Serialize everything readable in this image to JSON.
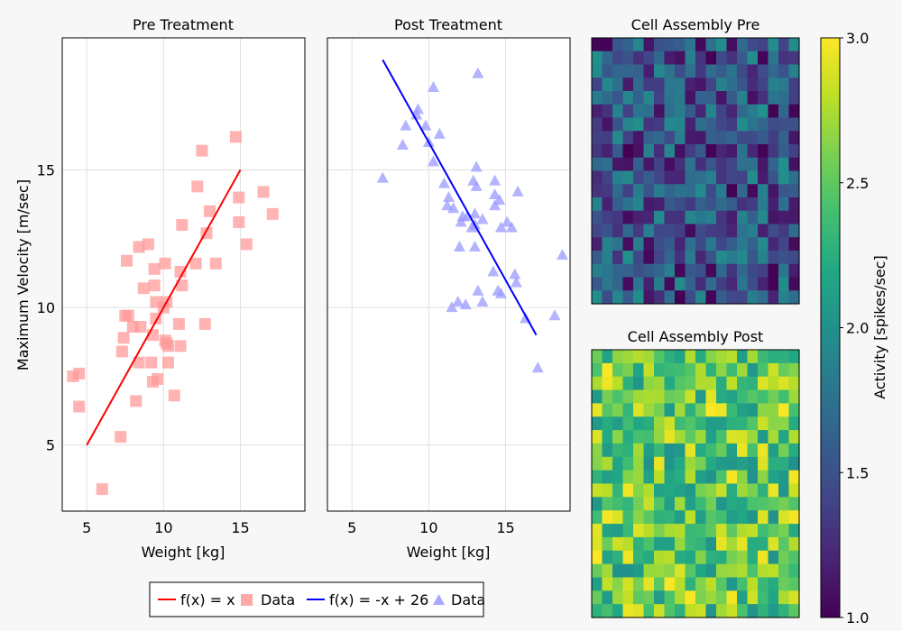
{
  "chart_data": [
    {
      "type": "scatter",
      "title": "Pre Treatment",
      "xlabel": "Weight [kg]",
      "ylabel": "Maximum Velocity [m/sec]",
      "xlim": [
        3.4,
        19.2
      ],
      "ylim": [
        2.6,
        19.8
      ],
      "xticks": [
        5,
        10,
        15
      ],
      "yticks": [
        5,
        10,
        15
      ],
      "grid": true,
      "series": [
        {
          "name": "f(x) = x",
          "kind": "line",
          "color": "#ff0000",
          "points": [
            [
              5,
              5
            ],
            [
              15,
              15
            ]
          ]
        },
        {
          "name": "Data",
          "kind": "scatter",
          "marker": "square",
          "color": "#ff9999",
          "points": [
            [
              4.1,
              7.5
            ],
            [
              4.5,
              7.6
            ],
            [
              4.5,
              6.4
            ],
            [
              6.0,
              3.4
            ],
            [
              7.2,
              5.3
            ],
            [
              7.3,
              8.4
            ],
            [
              7.4,
              8.9
            ],
            [
              7.5,
              9.7
            ],
            [
              7.6,
              11.7
            ],
            [
              7.7,
              9.7
            ],
            [
              8.0,
              9.3
            ],
            [
              8.2,
              6.6
            ],
            [
              8.4,
              12.2
            ],
            [
              8.4,
              8.0
            ],
            [
              8.5,
              9.3
            ],
            [
              8.7,
              10.7
            ],
            [
              9.0,
              12.3
            ],
            [
              9.2,
              8.0
            ],
            [
              9.3,
              7.3
            ],
            [
              9.3,
              9.0
            ],
            [
              9.4,
              11.4
            ],
            [
              9.4,
              10.8
            ],
            [
              9.5,
              9.6
            ],
            [
              9.5,
              10.2
            ],
            [
              9.6,
              7.4
            ],
            [
              10.0,
              10.0
            ],
            [
              10.1,
              8.8
            ],
            [
              10.1,
              11.6
            ],
            [
              10.2,
              8.7
            ],
            [
              10.2,
              10.2
            ],
            [
              10.3,
              8.0
            ],
            [
              10.3,
              8.6
            ],
            [
              10.7,
              6.8
            ],
            [
              11.0,
              9.4
            ],
            [
              11.1,
              8.6
            ],
            [
              11.1,
              11.3
            ],
            [
              11.2,
              13.0
            ],
            [
              11.2,
              10.8
            ],
            [
              12.1,
              11.6
            ],
            [
              12.2,
              14.4
            ],
            [
              12.5,
              15.7
            ],
            [
              12.7,
              9.4
            ],
            [
              12.8,
              12.7
            ],
            [
              13.0,
              13.5
            ],
            [
              13.4,
              11.6
            ],
            [
              14.7,
              16.2
            ],
            [
              14.9,
              13.1
            ],
            [
              14.9,
              14.0
            ],
            [
              15.4,
              12.3
            ],
            [
              16.5,
              14.2
            ],
            [
              17.1,
              13.4
            ]
          ]
        }
      ]
    },
    {
      "type": "scatter",
      "title": "Post Treatment",
      "xlabel": "Weight [kg]",
      "ylabel": "",
      "xlim": [
        3.4,
        19.2
      ],
      "ylim": [
        2.6,
        19.8
      ],
      "xticks": [
        5,
        10,
        15
      ],
      "grid": true,
      "series": [
        {
          "name": "f(x) = -x + 26",
          "kind": "line",
          "color": "#0000ff",
          "points": [
            [
              7,
              19
            ],
            [
              17,
              9
            ]
          ]
        },
        {
          "name": "Data",
          "kind": "scatter",
          "marker": "triangle",
          "color": "#9999ff",
          "points": [
            [
              7.0,
              14.7
            ],
            [
              8.3,
              15.9
            ],
            [
              8.5,
              16.6
            ],
            [
              9.2,
              17.0
            ],
            [
              9.3,
              17.2
            ],
            [
              9.8,
              16.6
            ],
            [
              10.0,
              16.0
            ],
            [
              10.3,
              18.0
            ],
            [
              10.3,
              15.3
            ],
            [
              10.7,
              16.3
            ],
            [
              11.0,
              14.5
            ],
            [
              11.2,
              13.7
            ],
            [
              11.3,
              14.0
            ],
            [
              11.5,
              10.0
            ],
            [
              11.6,
              13.6
            ],
            [
              11.9,
              10.2
            ],
            [
              12.0,
              12.2
            ],
            [
              12.1,
              13.1
            ],
            [
              12.2,
              13.3
            ],
            [
              12.4,
              10.1
            ],
            [
              12.5,
              13.3
            ],
            [
              12.8,
              12.9
            ],
            [
              12.9,
              14.6
            ],
            [
              13.0,
              13.4
            ],
            [
              13.0,
              12.2
            ],
            [
              13.0,
              13.0
            ],
            [
              13.1,
              15.1
            ],
            [
              13.1,
              14.4
            ],
            [
              13.2,
              18.5
            ],
            [
              13.2,
              10.6
            ],
            [
              13.5,
              10.2
            ],
            [
              13.5,
              13.2
            ],
            [
              14.2,
              11.3
            ],
            [
              14.3,
              14.6
            ],
            [
              14.3,
              13.7
            ],
            [
              14.3,
              14.1
            ],
            [
              14.5,
              10.6
            ],
            [
              14.6,
              13.9
            ],
            [
              14.7,
              10.5
            ],
            [
              14.7,
              12.9
            ],
            [
              15.1,
              13.1
            ],
            [
              15.4,
              12.9
            ],
            [
              15.6,
              11.2
            ],
            [
              15.7,
              10.9
            ],
            [
              15.8,
              14.2
            ],
            [
              16.3,
              9.6
            ],
            [
              17.1,
              7.8
            ],
            [
              18.2,
              9.7
            ],
            [
              18.7,
              11.9
            ]
          ]
        }
      ]
    },
    {
      "type": "heatmap",
      "title": "Cell Assembly Pre",
      "color_range": [
        1.0,
        3.0
      ],
      "grid_size": [
        20,
        20
      ],
      "seed": 12345,
      "value_range": [
        1.0,
        2.0
      ]
    },
    {
      "type": "heatmap",
      "title": "Cell Assembly Post",
      "color_range": [
        1.0,
        3.0
      ],
      "grid_size": [
        20,
        20
      ],
      "seed": 67890,
      "value_range": [
        2.0,
        3.0
      ]
    }
  ],
  "colorbar": {
    "label": "Activity [spikes/sec]",
    "ticks": [
      1.0,
      1.5,
      2.0,
      2.5,
      3.0
    ],
    "tick_labels": [
      "1.0",
      "1.5",
      "2.0",
      "2.5",
      "3.0"
    ],
    "colormap": "viridis"
  },
  "legend": {
    "placement": "bottom",
    "entries": [
      {
        "label": "f(x) = x",
        "kind": "line",
        "color": "#ff0000"
      },
      {
        "label": "Data",
        "kind": "square",
        "color": "#ff9999"
      },
      {
        "label": "f(x) = -x + 26",
        "kind": "line",
        "color": "#0000ff"
      },
      {
        "label": "Data",
        "kind": "triangle",
        "color": "#9999ff"
      }
    ]
  },
  "colors": {
    "background": "#f7f7f7",
    "grid": "#e1e1e1",
    "frame": "#000000",
    "text": "#000000"
  }
}
